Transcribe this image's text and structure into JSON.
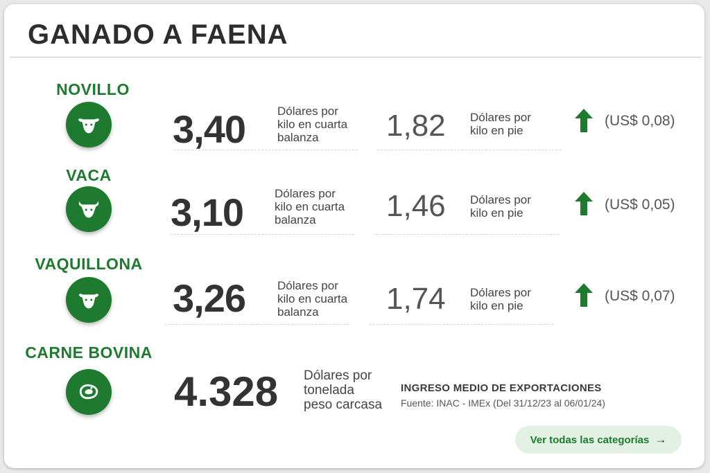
{
  "title": "GANADO A FAENA",
  "categories": [
    {
      "name": "NOVILLO",
      "icon": "cow-icon",
      "price_carcass": "3,40",
      "carcass_unit": [
        "Dólares por",
        "kilo en cuarta",
        "balanza"
      ],
      "price_live": "1,82",
      "live_unit": [
        "Dólares por",
        "kilo en pie"
      ],
      "trend": "up",
      "change": "(US$ 0,08)"
    },
    {
      "name": "VACA",
      "icon": "bull-icon",
      "price_carcass": "3,10",
      "carcass_unit": [
        "Dólares por",
        "kilo en cuarta",
        "balanza"
      ],
      "price_live": "1,46",
      "live_unit": [
        "Dólares por",
        "kilo en pie"
      ],
      "trend": "up",
      "change": "(US$ 0,05)"
    },
    {
      "name": "VAQUILLONA",
      "icon": "heifer-icon",
      "price_carcass": "3,26",
      "carcass_unit": [
        "Dólares por",
        "kilo en cuarta",
        "balanza"
      ],
      "price_live": "1,74",
      "live_unit": [
        "Dólares por",
        "kilo en pie"
      ],
      "trend": "up",
      "change": "(US$ 0,07)"
    }
  ],
  "beef": {
    "name": "CARNE BOVINA",
    "icon": "meat-cut-icon",
    "price": "4.328",
    "unit": [
      "Dólares por",
      "tonelada",
      "peso carcasa"
    ],
    "export_title": "INGRESO MEDIO DE EXPORTACIONES",
    "export_source": "Fuente: INAC - IMEx (Del 31/12/23 al 06/01/24)"
  },
  "cta": {
    "label": "Ver todas las categorías",
    "icon": "arrow-right-icon"
  },
  "colors": {
    "brand_green": "#1e7a2e",
    "cta_background": "#e3f1e4",
    "text_dark": "#333333"
  }
}
